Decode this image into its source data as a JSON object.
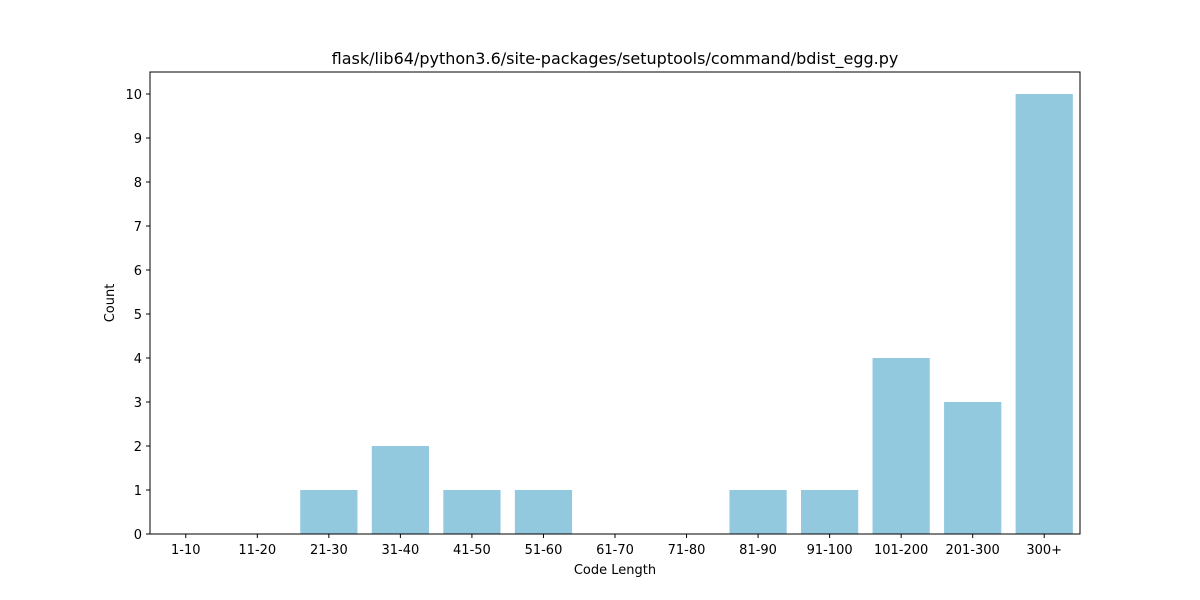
{
  "chart_data": {
    "type": "bar",
    "title": "flask/lib64/python3.6/site-packages/setuptools/command/bdist_egg.py",
    "xlabel": "Code Length",
    "ylabel": "Count",
    "categories": [
      "1-10",
      "11-20",
      "21-30",
      "31-40",
      "41-50",
      "51-60",
      "61-70",
      "71-80",
      "81-90",
      "91-100",
      "101-200",
      "201-300",
      "300+"
    ],
    "values": [
      0,
      0,
      1,
      2,
      1,
      1,
      0,
      0,
      1,
      1,
      4,
      3,
      10
    ],
    "ylim": [
      0,
      10.5
    ],
    "yticks": [
      0,
      1,
      2,
      3,
      4,
      5,
      6,
      7,
      8,
      9,
      10
    ],
    "bar_color": "#92c9df",
    "grid": false,
    "legend": "none"
  }
}
